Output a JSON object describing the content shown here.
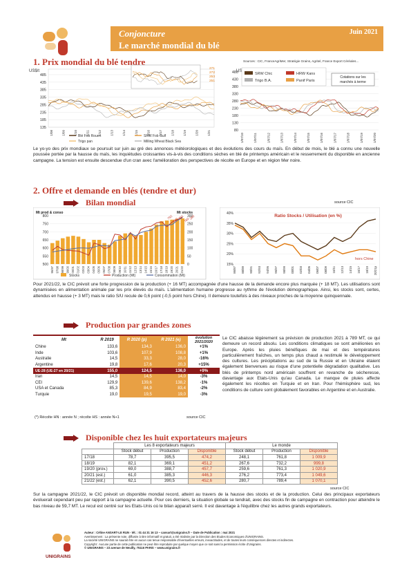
{
  "header": {
    "title1": "Conjoncture",
    "title2": "Le marché mondial du blé",
    "date": "Juin 2021"
  },
  "section1": {
    "title": "1. Prix mondial du blé tendre",
    "sources": "Sources : CIC, FranceAgriMer, Stratégie Grains, Agritel, France Export Céréales...",
    "paragraph": "Le yo-yo des prix mondiaux se poursuit sur juin au gré des annonces météorologiques et des évolutions des cours du maïs. En début de mois, le blé a connu une nouvelle poussée portée par la hausse du maïs, les inquiétudes croissantes vis-à-vis des conditions sèches en blé de printemps américain et le resserrement du disponible en ancienne campagne. La tension est ensuite descendue d'un cran avec l'amélioration des perspectives de récolte en Europe et en région Mer noire."
  },
  "chart_left": {
    "unit": "US$/t",
    "yticks": [
      "485",
      "435",
      "385",
      "335",
      "285",
      "235",
      "185",
      "135"
    ],
    "xticks": [
      "1/08",
      "1/09",
      "1/10",
      "1/11",
      "1/12",
      "1/13",
      "1/14",
      "1/15",
      "1/16",
      "1/17",
      "1/18",
      "1/19",
      "1/20",
      "1/21"
    ],
    "legend": [
      "Blé Fob Rouen",
      "SRW Fob Gulf",
      "Trigo pan",
      "Milling Wheat Black Sea"
    ],
    "colors": [
      "#5b3a1a",
      "#e8a044",
      "#f2c37a",
      "#b8b8b8"
    ],
    "inset_values": [
      "271",
      "272",
      "253",
      "251"
    ]
  },
  "chart_right": {
    "unit": "US$/t",
    "yticks": [
      "480",
      "430",
      "380",
      "330",
      "280",
      "230",
      "180",
      "130",
      "80"
    ],
    "xticks": [
      "1/07/10",
      "1/07/11",
      "1/07/12",
      "1/07/13",
      "1/07/14",
      "1/07/15",
      "1/07/16",
      "1/07/17",
      "1/07/18",
      "1/07/19",
      "1/07/20"
    ],
    "legend": [
      "SRW Chic",
      "HRW Kans",
      "Trigo B.A.",
      "Panif Paris"
    ],
    "colors": [
      "#5b3a1a",
      "#c0392b",
      "#b0b0b0",
      "#e8a044"
    ],
    "note": "Cotations sur les marchés à terme"
  },
  "section2": {
    "title": "2. Offre et demande en blés (tendre et dur)",
    "sub1": "Bilan mondial",
    "source": "source CIC",
    "paragraph": "Pour 2021/22, le CIC prévoit une forte progression de la production (+ 16 MT) accompagnée d'une hausse de la demande encore plus marquée (+ 18 MT). Les utilisations sont dynamisées en alimentation animale par les prix élevés du maïs. L'alimentation humaine progresse au rythme de l'évolution démographique. Ainsi, les stocks sont, certes, attendus en hausse (+ 3 MT) mais le ratio S/U recule de 0,6 point (-0,5 point hors Chine). Il demeure toutefois à des niveaux proches de la moyenne quinquennale."
  },
  "chart_data": [
    {
      "type": "bar",
      "title": "",
      "ylabel": "Mt prod & conso",
      "y2label": "Mt stocks",
      "ylim": [
        500,
        800
      ],
      "y2lim": [
        0,
        300
      ],
      "yticks": [
        "800",
        "750",
        "700",
        "650",
        "600",
        "550",
        "500"
      ],
      "y2ticks": [
        "300",
        "250",
        "200",
        "150",
        "100",
        "50",
        "0"
      ],
      "categories": [
        "96/97",
        "97/98",
        "98/99",
        "99/00",
        "00/01",
        "01/02",
        "02/03",
        "03/04",
        "04/05",
        "05/06",
        "06/07",
        "07/08",
        "08/09",
        "09/10",
        "10/11",
        "11/12",
        "12/13",
        "13/14",
        "14/15",
        "15/16",
        "16/17",
        "17/18",
        "18/19",
        "19/20",
        "20/21",
        "21/22"
      ],
      "series": [
        {
          "name": "Stocks",
          "values": [
            130,
            145,
            160,
            170,
            175,
            170,
            155,
            135,
            150,
            150,
            130,
            120,
            140,
            175,
            190,
            190,
            175,
            180,
            200,
            220,
            245,
            265,
            270,
            275,
            280,
            283
          ]
        },
        {
          "name": "Production (Mt)",
          "values": [
            585,
            610,
            590,
            585,
            582,
            580,
            568,
            555,
            630,
            620,
            595,
            605,
            685,
            680,
            650,
            695,
            655,
            715,
            730,
            735,
            755,
            762,
            732,
            760,
            775,
            791
          ]
        },
        {
          "name": "Consommation (Mt)",
          "values": [
            575,
            580,
            585,
            590,
            595,
            600,
            600,
            598,
            605,
            615,
            615,
            610,
            645,
            650,
            655,
            690,
            675,
            695,
            705,
            710,
            735,
            740,
            740,
            745,
            770,
            788
          ]
        }
      ],
      "annotations": [
        "792",
        "789",
        "791",
        "789",
        "280"
      ]
    },
    {
      "type": "line",
      "title": "Ratio Stocks / Utilisation (en %)",
      "ylim": [
        15,
        40
      ],
      "yticks": [
        "40%",
        "35%",
        "30%",
        "25%",
        "20%",
        "15%"
      ],
      "categories": [
        "86/87",
        "88/89",
        "90/91",
        "92/93",
        "94/95",
        "96/97",
        "98/99",
        "00/01",
        "02/03",
        "04/05",
        "06/07",
        "08/09",
        "10/11",
        "12/13",
        "14/15",
        "16/17",
        "18/19",
        "20/21p"
      ],
      "series": [
        {
          "name": "Monde",
          "values": [
            35,
            33,
            28,
            31,
            27,
            26,
            29,
            30,
            26,
            24,
            22,
            24,
            28,
            26,
            28,
            33,
            36,
            37
          ]
        },
        {
          "name": "hors Chine",
          "values": [
            34,
            32,
            27,
            30,
            25,
            23,
            25,
            24,
            19,
            19,
            17,
            19,
            22,
            20,
            21,
            22,
            22,
            21
          ]
        }
      ],
      "label_series": "hors Chine"
    }
  ],
  "section_prod": {
    "title": "Production par grandes zones",
    "headers": [
      "Mt",
      "R 2019",
      "R 2020 (p)",
      "R 2021 (e)",
      "évolution 2021/2020"
    ],
    "rows": [
      [
        "Chine",
        "133,6",
        "134,3",
        "136,0",
        "+1%"
      ],
      [
        "Inde",
        "103,6",
        "107,9",
        "108,8",
        "+1%"
      ],
      [
        "Australie",
        "14,5",
        "33,3",
        "28,0",
        "-16%"
      ],
      [
        "Argentine",
        "19,8",
        "17,6",
        "20,3",
        "+15%"
      ],
      [
        "UE-28 (UE-27 en 20/21)",
        "155,0",
        "124,5",
        "136,0",
        "+9%"
      ],
      [
        "Iran",
        "14,5",
        "14,5",
        "14,0",
        "-3%"
      ],
      [
        "CEI",
        "129,9",
        "139,6",
        "138,2",
        "-1%"
      ],
      [
        "USA et Canada",
        "85,3",
        "84,9",
        "83,4",
        "-2%"
      ],
      [
        "Turquie",
        "19,0",
        "19,5",
        "19,0",
        "-3%"
      ]
    ],
    "note": "(*) Récolte HN : année N ; récolte HS : année N+1",
    "source": "source CIC",
    "paragraph": "Le CIC abaisse légèrement sa prévision de production 2021 à 789 MT, ce qui demeure un record absolu. Les conditions climatiques se sont améliorées en Europe. Après les pluies bénéfiques de mai et des températures particulièrement fraîches, un temps plus chaud a restimulé le développement des cultures. Les précipitations au sud de la Russie et en Ukraine étaient également bienvenues au risque d'une potentielle dégradation qualitative. Les blés de printemps nord américain souffrent en revanche de sécheresse, davantage aux Etats-Unis qu'au Canada. Le manque de pluies affecte également les récoltes en Turquie et en Iran. Pour l'hémisphère sud, les conditions de culture sont globalement favorables en Argentine et en Australie."
  },
  "section_disp": {
    "title": "Disponible chez les huit exportateurs majeurs",
    "group1": "Les 8 exportateurs majeurs",
    "group2": "Le monde",
    "headers": [
      "",
      "Stock début",
      "Production",
      "Disponible",
      "Stock début",
      "Production",
      "Disponible"
    ],
    "rows": [
      [
        "17/18",
        "78,7",
        "395,5",
        "474,2",
        "248,1",
        "761,8",
        "1 009,9"
      ],
      [
        "18/19",
        "82,1",
        "369,1",
        "451,2",
        "267,6",
        "732,2",
        "999,8"
      ],
      [
        "19/20 (prov.)",
        "69,0",
        "388,7",
        "457,7",
        "259,6",
        "761,3",
        "1 020,9"
      ],
      [
        "20/21 (est.)",
        "61,0",
        "385,3",
        "446,3",
        "276,2",
        "773,4",
        "1 049,6"
      ],
      [
        "21/22 (est.)",
        "62,1",
        "390,5",
        "452,6",
        "280,7",
        "789,4",
        "1 070,1"
      ]
    ],
    "source": "source CIC",
    "paragraph": "Sur la campagne 2021/22, le CIC prévoit un disponible mondial record, atteint au travers de la hausse des stocks et de la production. Celui des principaux exportateurs évoluerait cependant peu par rapport à la campagne actuelle. Pour ces derniers, la situation globale se tendrait, avec des stocks fin de campagne en contraction pour atteindre le bas niveau de 59,7 MT. Le recul est centré sur les Etats-Unis où le bilan apparaît serré. Il est davantage à l'équilibre chez les autres grands exportateurs."
  },
  "footer": {
    "l1": "Auteur : Céline ANSART-LE RUN - tél. : 01 44 31 16 13 – cansart@unigrains.fr – Date de Publication : mai 2021",
    "l2": "Avertissement : La présente note, diffusée à titre informatif et gratuit, a été réalisée par la Direction des Etudes Economiques d'UNIGRAINS.",
    "l3": "La société UNIGRAINS ne saurait être en aucun cas tenue responsable d'éventuelles erreurs, inexactitudes, et de toutes leurs conséquences directes et indirectes.",
    "l4": "Copyright : Aucune partie de cette publication ne peut être reproduite par quelque moyen que ce soit sans la permission écrite d'Unigrains.",
    "l5": "© UNIGRAINS – 23 avenue de Neuilly, 75116 PARIS – www.unigrains.fr",
    "logo": "UNIGRAINS"
  }
}
